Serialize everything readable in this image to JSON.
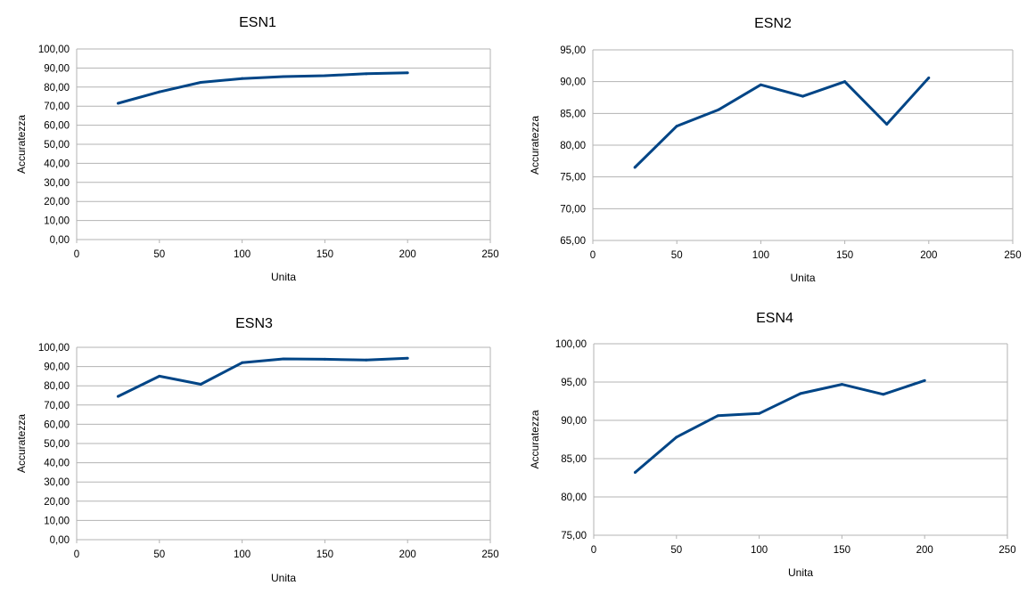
{
  "chart_data": [
    {
      "type": "line",
      "title": "ESN1",
      "xlabel": "Unita",
      "ylabel": "Accuratezza",
      "xlim": [
        0,
        250
      ],
      "ylim": [
        0,
        100
      ],
      "x_ticks": [
        0,
        50,
        100,
        150,
        200,
        250
      ],
      "y_ticks": [
        "0,00",
        "10,00",
        "20,00",
        "30,00",
        "40,00",
        "50,00",
        "60,00",
        "70,00",
        "80,00",
        "90,00",
        "100,00"
      ],
      "grid": true,
      "series": [
        {
          "color": "#004586",
          "x": [
            25,
            50,
            75,
            100,
            125,
            150,
            175,
            200
          ],
          "y": [
            71.5,
            77.5,
            82.5,
            84.5,
            85.5,
            86.0,
            87.0,
            87.5
          ]
        }
      ]
    },
    {
      "type": "line",
      "title": "ESN2",
      "xlabel": "Unita",
      "ylabel": "Accuratezza",
      "xlim": [
        0,
        250
      ],
      "ylim": [
        65,
        95
      ],
      "x_ticks": [
        0,
        50,
        100,
        150,
        200,
        250
      ],
      "y_ticks": [
        "65,00",
        "70,00",
        "75,00",
        "80,00",
        "85,00",
        "90,00",
        "95,00"
      ],
      "grid": true,
      "series": [
        {
          "color": "#004586",
          "x": [
            25,
            50,
            75,
            100,
            125,
            150,
            175,
            200
          ],
          "y": [
            76.5,
            83.0,
            85.6,
            89.5,
            87.7,
            90.0,
            83.3,
            90.6
          ]
        }
      ]
    },
    {
      "type": "line",
      "title": "ESN3",
      "xlabel": "Unita",
      "ylabel": "Accuratezza",
      "xlim": [
        0,
        250
      ],
      "ylim": [
        0,
        100
      ],
      "x_ticks": [
        0,
        50,
        100,
        150,
        200,
        250
      ],
      "y_ticks": [
        "0,00",
        "10,00",
        "20,00",
        "30,00",
        "40,00",
        "50,00",
        "60,00",
        "70,00",
        "80,00",
        "90,00",
        "100,00"
      ],
      "grid": true,
      "series": [
        {
          "color": "#004586",
          "x": [
            25,
            50,
            75,
            100,
            125,
            150,
            175,
            200
          ],
          "y": [
            74.5,
            85.0,
            80.8,
            92.0,
            94.0,
            93.8,
            93.4,
            94.3
          ]
        }
      ]
    },
    {
      "type": "line",
      "title": "ESN4",
      "xlabel": "Unita",
      "ylabel": "Accuratezza",
      "xlim": [
        0,
        250
      ],
      "ylim": [
        75,
        100
      ],
      "x_ticks": [
        0,
        50,
        100,
        150,
        200,
        250
      ],
      "y_ticks": [
        "75,00",
        "80,00",
        "85,00",
        "90,00",
        "95,00",
        "100,00"
      ],
      "grid": true,
      "series": [
        {
          "color": "#004586",
          "x": [
            25,
            50,
            75,
            100,
            125,
            150,
            175,
            200
          ],
          "y": [
            83.2,
            87.8,
            90.6,
            90.9,
            93.5,
            94.7,
            93.4,
            95.2
          ]
        }
      ]
    }
  ]
}
